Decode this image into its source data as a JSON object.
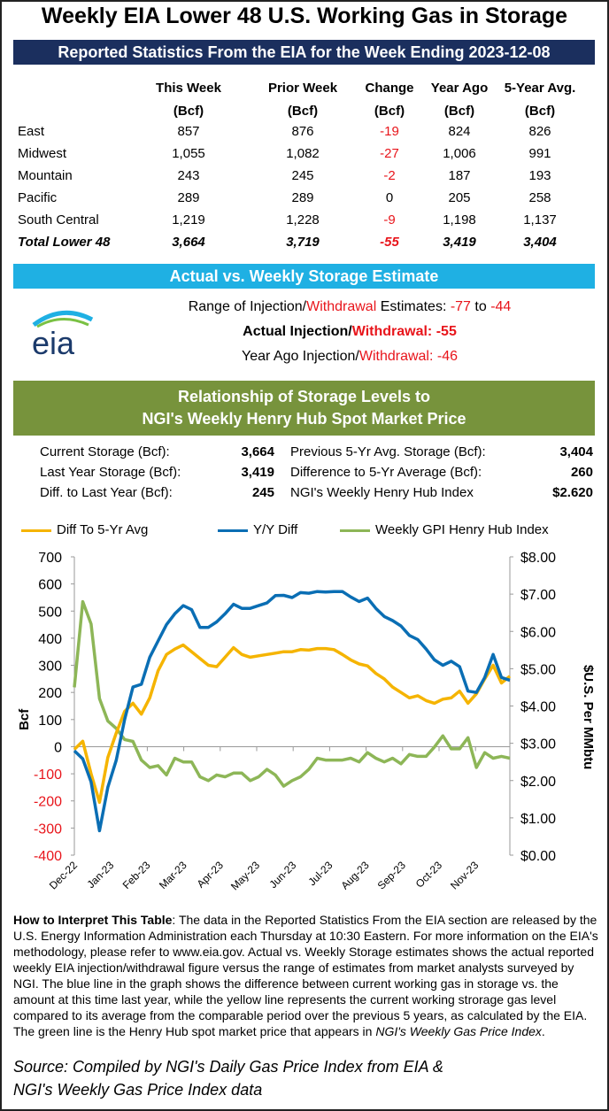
{
  "title": "Weekly EIA Lower 48 U.S. Working Gas in Storage",
  "subtitle": "Reported Statistics From the EIA for the Week Ending 2023-12-08",
  "table": {
    "headers": [
      [
        "This Week",
        "(Bcf)"
      ],
      [
        "Prior Week",
        "(Bcf)"
      ],
      [
        "Change",
        "(Bcf)"
      ],
      [
        "Year Ago",
        "(Bcf)"
      ],
      [
        "5-Year Avg.",
        "(Bcf)"
      ]
    ],
    "rows": [
      {
        "region": "East",
        "values": [
          "857",
          "876",
          "-19",
          "824",
          "826"
        ]
      },
      {
        "region": "Midwest",
        "values": [
          "1,055",
          "1,082",
          "-27",
          "1,006",
          "991"
        ]
      },
      {
        "region": "Mountain",
        "values": [
          "243",
          "245",
          "-2",
          "187",
          "193"
        ]
      },
      {
        "region": "Pacific",
        "values": [
          "289",
          "289",
          "0",
          "205",
          "258"
        ]
      },
      {
        "region": "South Central",
        "values": [
          "1,219",
          "1,228",
          "-9",
          "1,198",
          "1,137"
        ]
      },
      {
        "region": "Total Lower 48",
        "values": [
          "3,664",
          "3,719",
          "-55",
          "3,419",
          "3,404"
        ]
      }
    ]
  },
  "estimate": {
    "header": "Actual vs. Weekly Storage Estimate",
    "logo": "eia",
    "range_prefix": "Range of Injection/",
    "range_w": "Withdrawal",
    "range_mid": " Estimates: ",
    "range_low": "-77",
    "range_to": " to ",
    "range_high": "-44",
    "actual_prefix": "Actual Injection/",
    "actual_w": "Withdrawal:",
    "actual_value": "-55",
    "ya_prefix": "Year Ago Injection/",
    "ya_w": "Withdrawal:",
    "ya_value": "-46"
  },
  "relationship": {
    "header_line1": "Relationship of Storage Levels to",
    "header_line2": "NGI's Weekly Henry Hub Spot Market Price",
    "left": [
      {
        "label": "Current Storage (Bcf):",
        "value": "3,664"
      },
      {
        "label": "Last Year Storage (Bcf):",
        "value": "3,419"
      },
      {
        "label": "Diff. to Last Year (Bcf):",
        "value": "245"
      }
    ],
    "right": [
      {
        "label": "Previous 5-Yr Avg. Storage (Bcf):",
        "value": "3,404"
      },
      {
        "label": "Difference to 5-Yr Average (Bcf):",
        "value": "260"
      },
      {
        "label": "NGI's Weekly Henry Hub Index",
        "value": "$2.620"
      }
    ]
  },
  "chart_data": {
    "type": "line",
    "xlabel": "",
    "ylabel": "Bcf",
    "y2label": "$U.S. Per MMbtu",
    "x_tick_labels": [
      "Dec-22",
      "Jan-23",
      "Feb-23",
      "Mar-23",
      "Apr-23",
      "May-23",
      "Jun-23",
      "Jul-23",
      "Aug-23",
      "Sep-23",
      "Oct-23",
      "Nov-23"
    ],
    "ylim": [
      -400,
      700
    ],
    "y_ticks": [
      700,
      600,
      500,
      400,
      300,
      200,
      100,
      0,
      -100,
      -200,
      -300,
      -400
    ],
    "y2lim": [
      0,
      8
    ],
    "y2_ticks": [
      "$8.00",
      "$7.00",
      "$6.00",
      "$5.00",
      "$4.00",
      "$3.00",
      "$2.00",
      "$1.00",
      "$0.00"
    ],
    "legend_position": "top",
    "series": [
      {
        "name": "Diff To 5-Yr Avg",
        "color": "#f5b400",
        "axis": "left",
        "values": [
          -10,
          20,
          -100,
          -205,
          -40,
          50,
          130,
          160,
          120,
          180,
          280,
          340,
          360,
          375,
          350,
          325,
          300,
          295,
          330,
          365,
          340,
          330,
          335,
          340,
          345,
          350,
          350,
          358,
          356,
          362,
          362,
          358,
          340,
          320,
          305,
          298,
          270,
          250,
          220,
          200,
          180,
          188,
          170,
          160,
          175,
          180,
          205,
          160,
          195,
          250,
          300,
          235,
          260
        ]
      },
      {
        "name": "Y/Y Diff",
        "color": "#0a6eb4",
        "axis": "left",
        "values": [
          -15,
          -45,
          -130,
          -310,
          -150,
          -50,
          100,
          220,
          230,
          330,
          390,
          450,
          490,
          520,
          505,
          440,
          440,
          460,
          490,
          525,
          510,
          510,
          520,
          530,
          557,
          558,
          550,
          568,
          566,
          572,
          570,
          572,
          572,
          552,
          535,
          548,
          510,
          480,
          465,
          445,
          410,
          395,
          360,
          320,
          300,
          315,
          295,
          205,
          200,
          255,
          340,
          255,
          245
        ]
      },
      {
        "name": "Weekly GPI Henry Hub Index",
        "color": "#8db657",
        "axis": "right",
        "values": [
          4.5,
          6.8,
          6.2,
          4.2,
          3.6,
          3.4,
          3.1,
          3.05,
          2.55,
          2.35,
          2.4,
          2.15,
          2.6,
          2.5,
          2.5,
          2.1,
          2.0,
          2.15,
          2.1,
          2.2,
          2.2,
          2.0,
          2.1,
          2.3,
          2.15,
          1.85,
          2.0,
          2.1,
          2.3,
          2.6,
          2.55,
          2.55,
          2.55,
          2.6,
          2.5,
          2.75,
          2.6,
          2.5,
          2.6,
          2.45,
          2.7,
          2.65,
          2.65,
          2.9,
          3.2,
          2.85,
          2.85,
          3.15,
          2.35,
          2.75,
          2.6,
          2.65,
          2.6
        ]
      }
    ]
  },
  "note": {
    "bold": "How to Interpret This Table",
    "text": ": The data in the Reported Statistics From the EIA section are released by the U.S. Energy Information Administration each Thursday at 10:30 Eastern. For more information on the EIA's methodology, please refer to www.eia.gov. Actual vs. Weekly Storage estimates shows the actual reported weekly EIA injection/withdrawal figure versus the range of estimates from market analysts surveyed by NGI. The blue line in the graph shows the difference between current working gas in storage vs. the amount at this time last year, while the yellow line represents the current working strorage gas level compared to its average from the comparable period over the previous 5 years, as calculated by the EIA. The green line is the Henry Hub spot market price that appears in ",
    "italic": "NGI's Weekly Gas Price Index",
    "end": "."
  },
  "source": {
    "line1": "Source: Compiled by NGI's Daily Gas Price Index from EIA &",
    "line2": "NGI's Weekly Gas Price Index data"
  }
}
